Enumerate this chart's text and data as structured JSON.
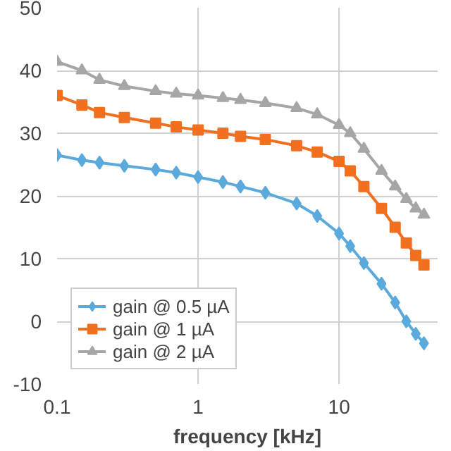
{
  "chart_data": {
    "type": "line",
    "xlabel": "frequency [kHz]",
    "log": "x",
    "xlim": [
      0.1,
      50
    ],
    "xticks": [
      0.1,
      1,
      10
    ],
    "ylim": [
      -10,
      50
    ],
    "yticks": [
      -10,
      0,
      10,
      20,
      30,
      40,
      50
    ],
    "grid": true,
    "legend": "bottom left",
    "line_style": "solid",
    "x": [
      0.1,
      0.15,
      0.2,
      0.3,
      0.5,
      0.7,
      1,
      1.5,
      2,
      3,
      5,
      7,
      10,
      12,
      15,
      20,
      25,
      30,
      35,
      40
    ],
    "series": [
      {
        "name": "gain @ 0.5 µA",
        "color": "#5aaadc",
        "marker": "diamond",
        "values": [
          26.5,
          25.7,
          25.3,
          24.8,
          24.2,
          23.7,
          23,
          22.2,
          21.5,
          20.5,
          18.8,
          16.8,
          14,
          12,
          9.3,
          6,
          3,
          0,
          -2,
          -3.5
        ]
      },
      {
        "name": "gain @ 1 µA",
        "color": "#f07020",
        "marker": "square",
        "values": [
          36,
          34.5,
          33.3,
          32.5,
          31.6,
          31,
          30.5,
          30,
          29.5,
          29,
          28,
          27,
          25.5,
          24,
          21.5,
          18,
          15,
          12.5,
          10.5,
          9
        ]
      },
      {
        "name": "gain @ 2 µA",
        "color": "#a6a6a6",
        "marker": "triangle",
        "values": [
          41.4,
          40,
          38.5,
          37.5,
          36.7,
          36.3,
          36,
          35.6,
          35.3,
          34.8,
          34,
          33,
          31.3,
          30,
          27.5,
          24,
          21.5,
          19.5,
          18,
          17
        ]
      }
    ]
  }
}
